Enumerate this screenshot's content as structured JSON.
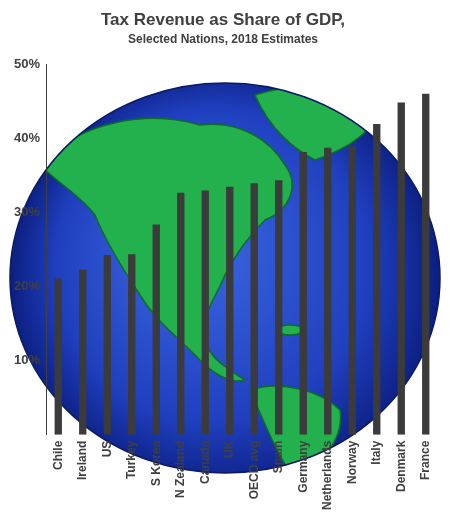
{
  "chart_data": {
    "type": "bar",
    "title": "Tax Revenue as Share of GDP,",
    "subtitle": "Selected Nations, 2018 Estimates",
    "categories": [
      "Chile",
      "Ireland",
      "US",
      "Turkey",
      "S Korea",
      "N Zealand",
      "Canada",
      "UK",
      "OECD avg",
      "Spain",
      "Germany",
      "Netherlands",
      "Norway",
      "Italy",
      "Denmark",
      "France"
    ],
    "values": [
      21.1,
      22.3,
      24.3,
      24.4,
      28.4,
      32.7,
      33.0,
      33.5,
      34.0,
      34.4,
      38.2,
      38.8,
      39.0,
      42.0,
      44.9,
      46.1
    ],
    "color": "#3b3b3b",
    "ylim": [
      0,
      50
    ],
    "yticks": [
      {
        "value": 10,
        "label": "10%"
      },
      {
        "value": 20,
        "label": "20%"
      },
      {
        "value": 30,
        "label": "30%"
      },
      {
        "value": 40,
        "label": "40%"
      },
      {
        "value": 50,
        "label": "50%"
      }
    ],
    "grid": false
  }
}
